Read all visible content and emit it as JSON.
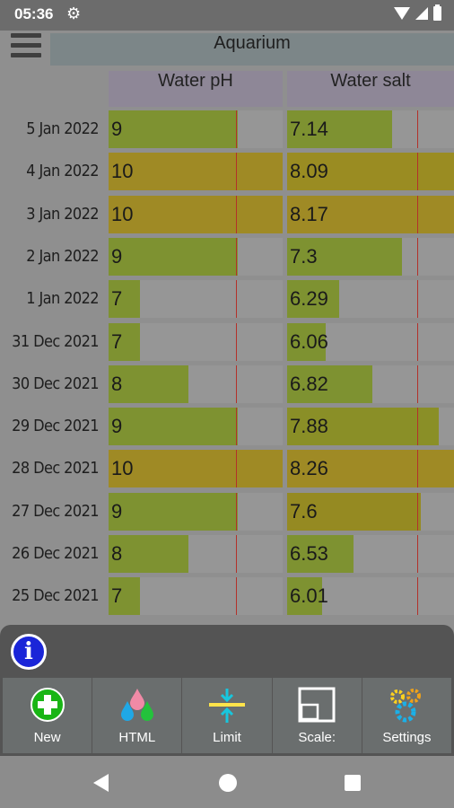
{
  "status": {
    "time": "05:36"
  },
  "app": {
    "title": "Aquarium"
  },
  "columns": [
    {
      "label": "Water pH"
    },
    {
      "label": "Water salt"
    }
  ],
  "colors": {
    "green": "#7b9130",
    "olive": "#9d8d20",
    "yellow": "#a39222",
    "orange": "#a08a1f",
    "limit_line": "#b3312a"
  },
  "rows": [
    {
      "date": "5 Jan 2022",
      "ph": "9",
      "salt": "7.14",
      "ph_fill": 0.74,
      "salt_fill": 0.63,
      "ph_color": "#7e9231",
      "salt_color": "#7e9231"
    },
    {
      "date": "4 Jan 2022",
      "ph": "10",
      "salt": "8.09",
      "ph_fill": 1.0,
      "salt_fill": 1.0,
      "ph_color": "#9f8a25",
      "salt_color": "#9a8c22"
    },
    {
      "date": "3 Jan 2022",
      "ph": "10",
      "salt": "8.17",
      "ph_fill": 1.0,
      "salt_fill": 1.0,
      "ph_color": "#9f8a25",
      "salt_color": "#9f8a25"
    },
    {
      "date": "2 Jan 2022",
      "ph": "9",
      "salt": "7.3",
      "ph_fill": 0.74,
      "salt_fill": 0.69,
      "ph_color": "#7e9231",
      "salt_color": "#7e9231"
    },
    {
      "date": "1 Jan 2022",
      "ph": "7",
      "salt": "6.29",
      "ph_fill": 0.18,
      "salt_fill": 0.31,
      "ph_color": "#7e9231",
      "salt_color": "#7e9231"
    },
    {
      "date": "31 Dec 2021",
      "ph": "7",
      "salt": "6.06",
      "ph_fill": 0.18,
      "salt_fill": 0.23,
      "ph_color": "#7e9231",
      "salt_color": "#7e9231"
    },
    {
      "date": "30 Dec 2021",
      "ph": "8",
      "salt": "6.82",
      "ph_fill": 0.46,
      "salt_fill": 0.51,
      "ph_color": "#7e9231",
      "salt_color": "#7e9231"
    },
    {
      "date": "29 Dec 2021",
      "ph": "9",
      "salt": "7.88",
      "ph_fill": 0.74,
      "salt_fill": 0.91,
      "ph_color": "#7e9231",
      "salt_color": "#8a8f27"
    },
    {
      "date": "28 Dec 2021",
      "ph": "10",
      "salt": "8.26",
      "ph_fill": 1.0,
      "salt_fill": 1.0,
      "ph_color": "#9f8a25",
      "salt_color": "#9f8a25"
    },
    {
      "date": "27 Dec 2021",
      "ph": "9",
      "salt": "7.6",
      "ph_fill": 0.74,
      "salt_fill": 0.8,
      "ph_color": "#7e9231",
      "salt_color": "#958a22"
    },
    {
      "date": "26 Dec 2021",
      "ph": "8",
      "salt": "6.53",
      "ph_fill": 0.46,
      "salt_fill": 0.4,
      "ph_color": "#7e9231",
      "salt_color": "#7e9231"
    },
    {
      "date": "25 Dec 2021",
      "ph": "7",
      "salt": "6.01",
      "ph_fill": 0.18,
      "salt_fill": 0.21,
      "ph_color": "#7e9231",
      "salt_color": "#7e9231"
    }
  ],
  "toolbar": [
    {
      "label": "New",
      "icon": "add-icon"
    },
    {
      "label": "HTML",
      "icon": "drops-icon"
    },
    {
      "label": "Limit",
      "icon": "limit-icon"
    },
    {
      "label": "Scale:",
      "icon": "scale-icon"
    },
    {
      "label": "Settings",
      "icon": "gears-icon"
    }
  ]
}
